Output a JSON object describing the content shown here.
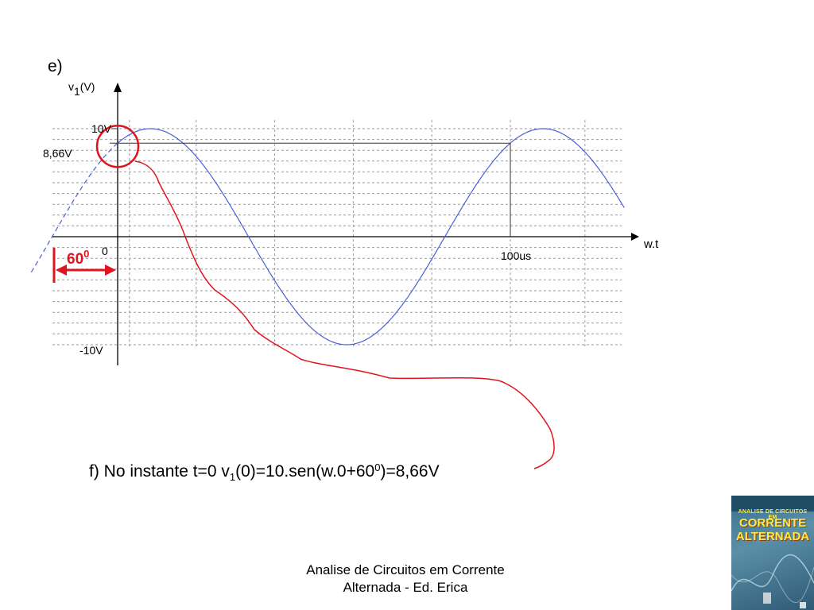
{
  "slide": {
    "item_label": "e)",
    "formula": {
      "prefix": "f) No instante t=0   v",
      "sub": "1",
      "middle": "(0)=10.sen(w.0+60",
      "sup": "0",
      "suffix": ")=8,66V"
    },
    "footer": {
      "line1": "Analise de Circuitos em Corrente",
      "line2": "Alternada - Ed. Erica"
    },
    "book_cover": {
      "subtitle": "ANALISE DE CIRCUITOS EM",
      "title_line1": "CORRENTE",
      "title_line2": "ALTERNADA"
    }
  },
  "chart_data": {
    "type": "line",
    "amplitude": 10,
    "phase_deg": 60,
    "period_us": 100,
    "y_axis_label": {
      "main": "v",
      "sub": "1",
      "unit": "(V)"
    },
    "x_axis_label": "w.t",
    "y_ticks": [
      {
        "value": 10,
        "label": "10V"
      },
      {
        "value": 8.66,
        "label": "8,66V"
      },
      {
        "value": -10,
        "label": "-10V"
      }
    ],
    "x_ticks": [
      {
        "value": 0,
        "label": "0"
      },
      {
        "value": 100,
        "label": "100us"
      }
    ],
    "phase_label": {
      "main": "60",
      "sup": "0"
    },
    "x_range_us": [
      -22,
      172
    ],
    "y_range": [
      -10,
      10
    ],
    "grid": true,
    "series_color": "#4a5fd6",
    "annotation_color": "#e0141e"
  }
}
